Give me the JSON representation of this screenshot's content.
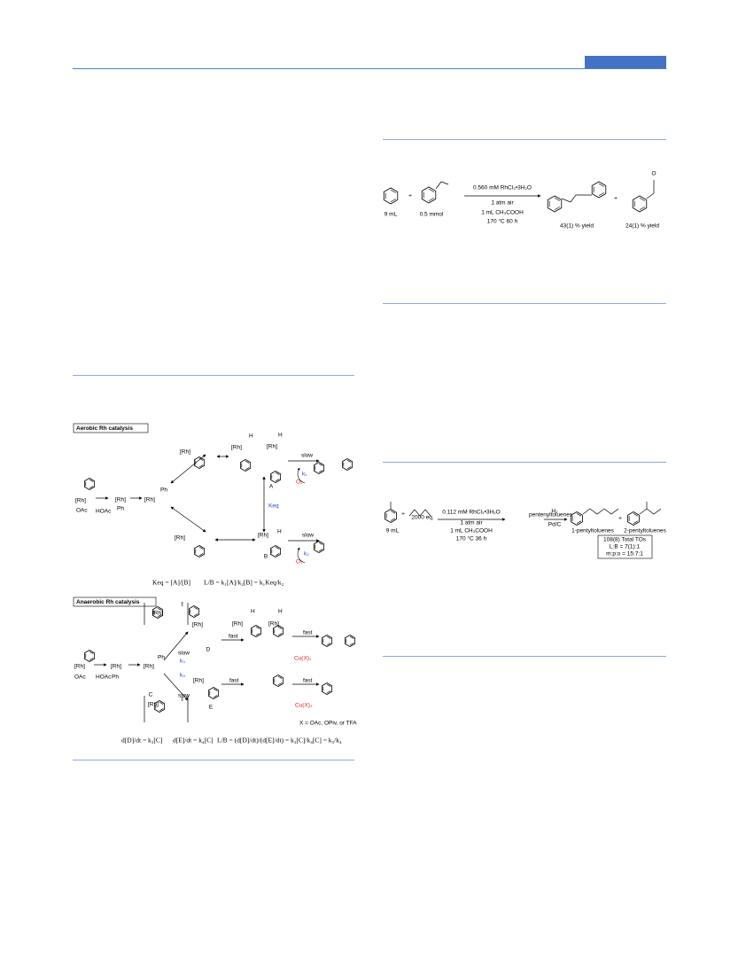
{
  "scheme_left": {
    "aerobic_title": "Aerobic Rh catalysis",
    "anaerobic_title": "Anaerobic Rh catalysis",
    "labels": [
      "[Rh]",
      "OAc",
      "HOAc",
      "[Rh]",
      "Ph",
      "[Rh]",
      "Ph",
      "[Rh]",
      "[Rh]",
      "H",
      "[Rh]",
      "H",
      "slow",
      "k₁",
      "O₂",
      "A",
      "Keq",
      "[Rh]",
      "[Rh]",
      "H",
      "slow",
      "k₂",
      "O₂",
      "B",
      "‡",
      "[Rh]",
      "[Rh]",
      "[Rh]",
      "H",
      "[Rh]",
      "H",
      "fast",
      "D",
      "fast",
      "Cu(X)₂",
      "[Rh]",
      "OAc",
      "HOAc",
      "[Rh]",
      "Ph",
      "[Rh]",
      "Ph",
      "C",
      "slow",
      "k₃",
      "k₄",
      "slow",
      "[Rh]",
      "fast",
      "E",
      "fast",
      "Cu(X)₂",
      "[Rh]",
      "‡",
      "X = OAc, OPiv, or TFA"
    ],
    "equations": [
      "Keq = [A]/[B]",
      "L/B = k₁[A]/k₂[B] = k₁Keq/k₂",
      "d[D]/dt = k₃[C]",
      "d[E]/dt = k₄[C]",
      "L/B = (d[D]/dt)/(d[E]/dt) = k₃[C]/k₄[C] = k₃/k₄"
    ]
  },
  "scheme_right_1": {
    "labels": [
      "+",
      "9 mL",
      "0.5 mmol",
      "0.560 mM RhCl₃•3H₂O",
      "1 atm air",
      "1 mL CH₃COOH",
      "170 °C  60 h",
      "43(1) % yield",
      "+",
      "24(1) % yield",
      "O"
    ]
  },
  "scheme_right_2": {
    "labels": [
      "9 mL",
      "+",
      "2000 eq.",
      "0.112 mM RhCl₃•3H₂O",
      "1 atm air",
      "1 mL CH₃COOH",
      "170 °C  36 h",
      "pentenyltoluenes",
      "H₂",
      "Pd/C",
      "1-pentyltoluenes",
      "+",
      "2-pentyltoluenes",
      "108(8) Total TOs",
      "L:B = 7(1):1",
      "m:p:o = 15:7:1"
    ]
  }
}
